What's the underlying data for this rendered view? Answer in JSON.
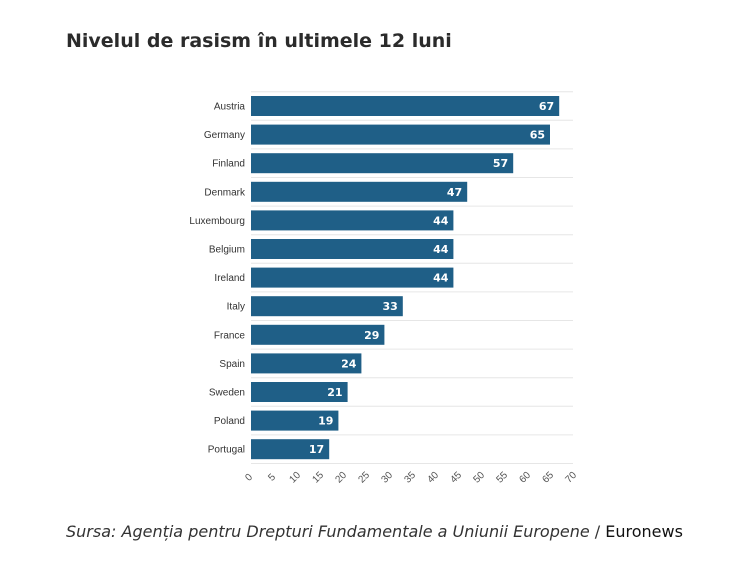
{
  "title": "Nivelul de rasism în ultimele 12 luni",
  "source": {
    "text": "Sursa: Agenția pentru Drepturi Fundamentale a Uniunii Europene",
    "separator": " / ",
    "brand": "Euronews"
  },
  "colors": {
    "bar": "#1f5f87",
    "label": "#ffffff",
    "grid": "#e6e6e6",
    "tick": "#555555"
  },
  "chart_data": {
    "type": "bar",
    "orientation": "horizontal",
    "categories": [
      "Austria",
      "Germany",
      "Finland",
      "Denmark",
      "Luxembourg",
      "Belgium",
      "Ireland",
      "Italy",
      "France",
      "Spain",
      "Sweden",
      "Poland",
      "Portugal"
    ],
    "values": [
      67,
      65,
      57,
      47,
      44,
      44,
      44,
      33,
      29,
      24,
      21,
      19,
      17
    ],
    "xlim": [
      0,
      70
    ],
    "xticks": [
      0,
      5,
      10,
      15,
      20,
      25,
      30,
      35,
      40,
      45,
      50,
      55,
      60,
      65,
      70
    ],
    "title": "Nivelul de rasism în ultimele 12 luni",
    "xlabel": "",
    "ylabel": "",
    "grid": true,
    "legend": "none"
  }
}
